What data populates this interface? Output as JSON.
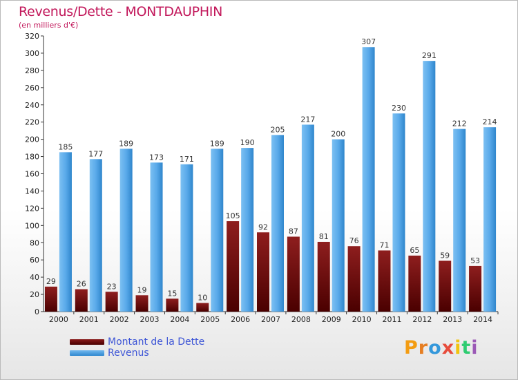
{
  "chart_data": {
    "type": "bar",
    "title": "Revenus/Dette - MONTDAUPHIN",
    "subtitle": "(en milliers d'€)",
    "categories": [
      "2000",
      "2001",
      "2002",
      "2003",
      "2004",
      "2005",
      "2006",
      "2007",
      "2008",
      "2009",
      "2010",
      "2011",
      "2012",
      "2013",
      "2014"
    ],
    "series": [
      {
        "name": "Montant de la Dette",
        "color": "#6b0a0a",
        "values": [
          29,
          26,
          23,
          19,
          15,
          10,
          105,
          92,
          87,
          81,
          76,
          71,
          65,
          59,
          53
        ]
      },
      {
        "name": "Revenus",
        "color": "#4aa3e8",
        "values": [
          185,
          177,
          189,
          173,
          171,
          189,
          190,
          205,
          217,
          200,
          307,
          230,
          291,
          212,
          214
        ]
      }
    ],
    "ylim": [
      0,
      320
    ],
    "ytick_step": 20,
    "grid": false,
    "legend_position": "bottom-left"
  },
  "logo": {
    "text": "Proxiti"
  },
  "colors": {
    "title": "#c2185b",
    "legend_text": "#3d55d6"
  }
}
